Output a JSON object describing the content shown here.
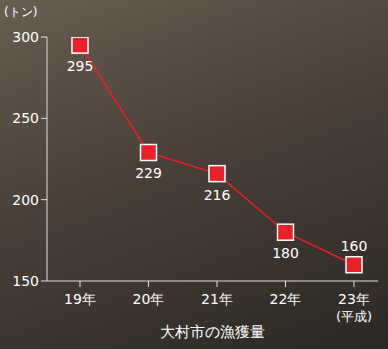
{
  "chart_data": {
    "type": "line",
    "title": "大村市の漁獲量",
    "ylabel": "(トン)",
    "xlabel": "(平成)",
    "categories": [
      "19年",
      "20年",
      "21年",
      "22年",
      "23年"
    ],
    "values": [
      295,
      229,
      216,
      180,
      160
    ],
    "color": "#e8202a",
    "marker": "square",
    "ylim": [
      150,
      300
    ],
    "yticks": [
      150,
      200,
      250,
      300
    ],
    "grid": false,
    "data_labels": true
  }
}
